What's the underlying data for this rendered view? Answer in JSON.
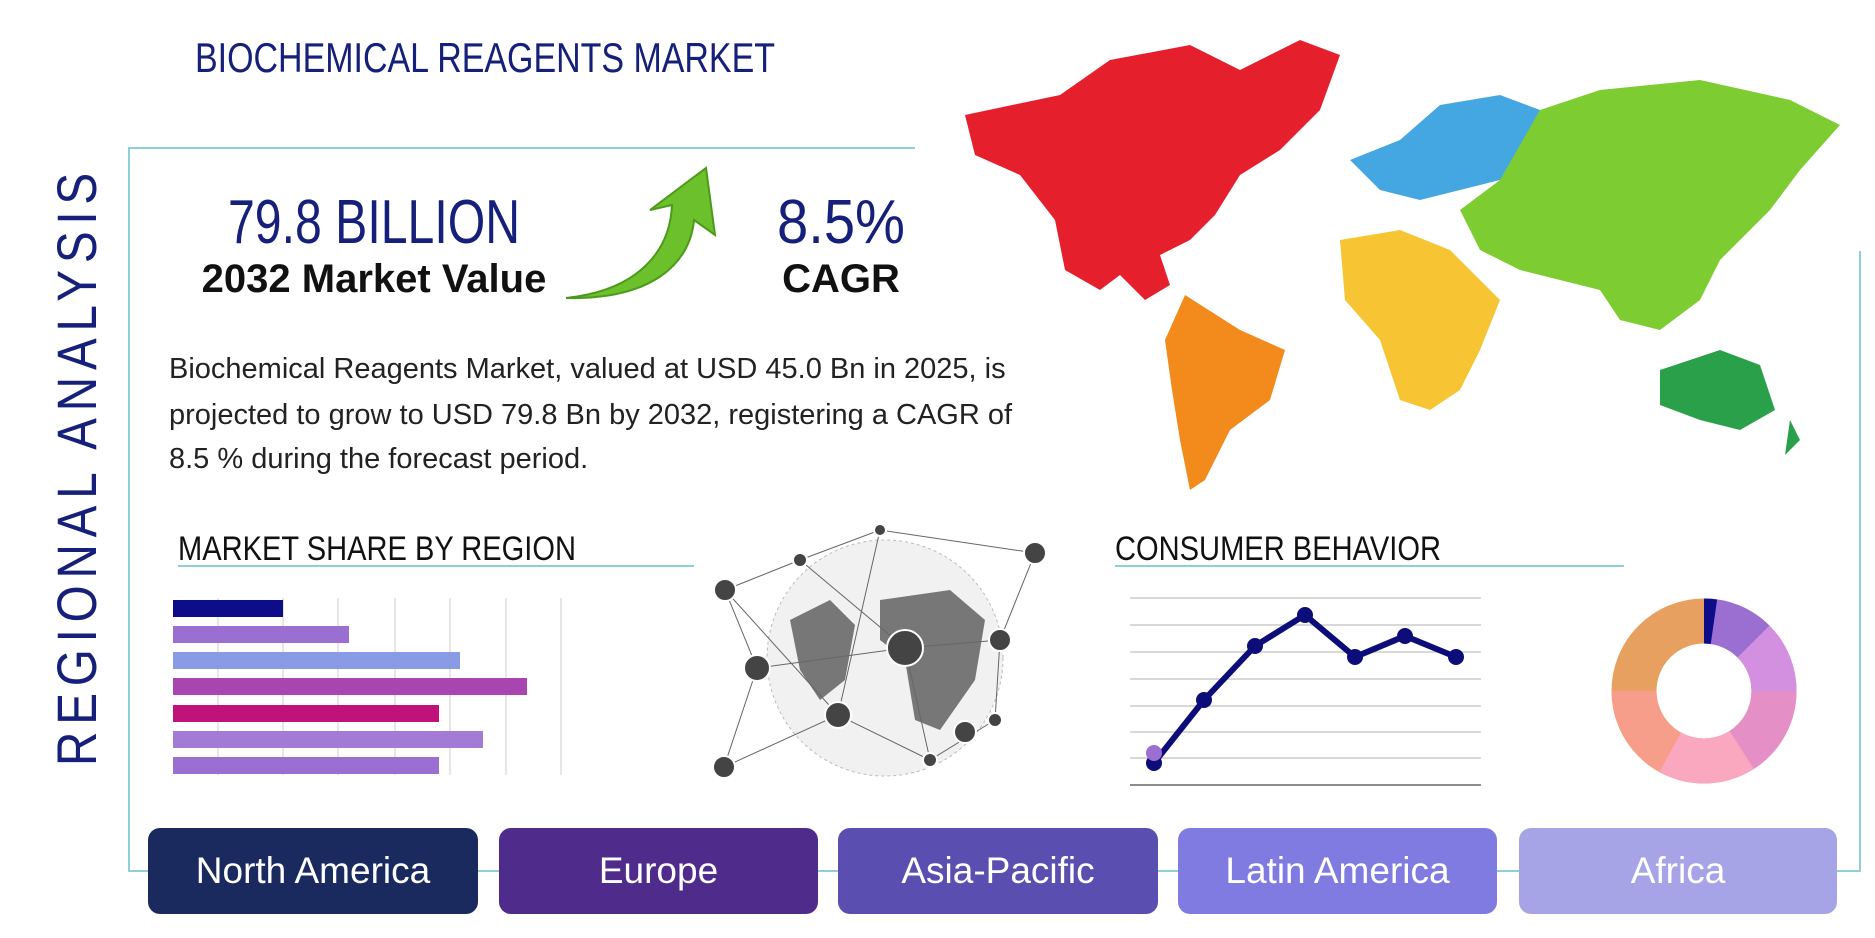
{
  "header": {
    "title": "BIOCHEMICAL REAGENTS MARKET"
  },
  "sidebar_label": "REGIONAL ANALYSIS",
  "stats": [
    {
      "value": "79.8 BILLION",
      "label": "2032 Market Value"
    },
    {
      "value": "8.5%",
      "label": "CAGR"
    }
  ],
  "description": [
    "Biochemical Reagents Market, valued at USD 45.0 Bn in 2025, is",
    "projected to grow to USD 79.8 Bn by 2032, registering a CAGR of",
    "8.5 % during the forecast period."
  ],
  "sections": [
    "MARKET SHARE BY REGION",
    "CONSUMER BEHAVIOR"
  ],
  "regions": [
    "North America",
    "Europe",
    "Asia-Pacific",
    "Latin America",
    "Africa"
  ]
}
